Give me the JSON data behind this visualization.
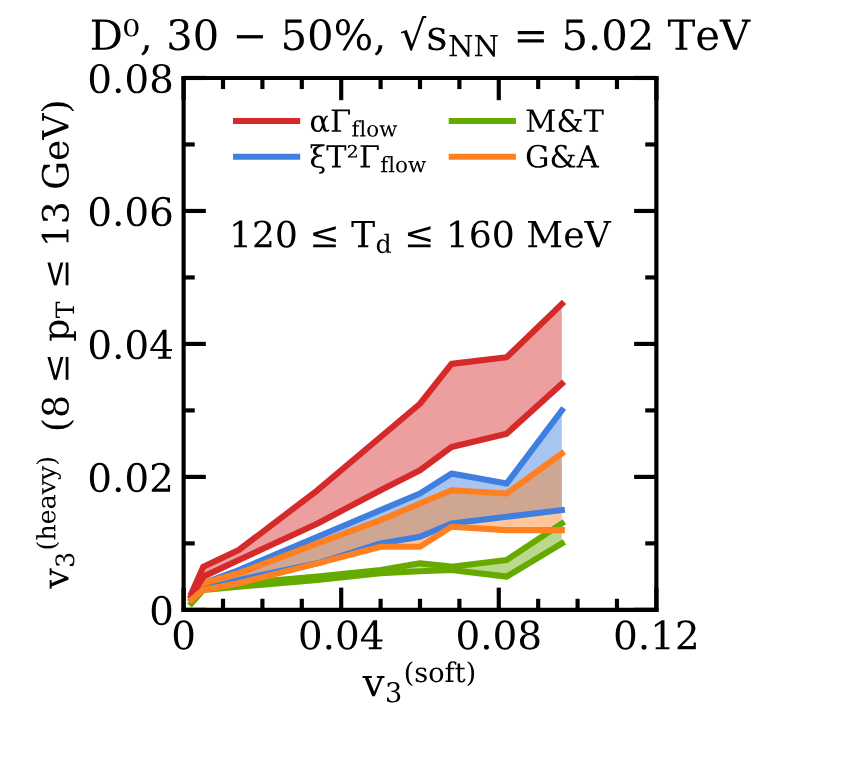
{
  "chart_data": {
    "type": "line",
    "title": "D⁰, 30 − 50%, √s$_{NN}$ = 5.02 TeV",
    "xlabel": "v$_{3}$$^{(soft)}$",
    "ylabel": "v$_{3}$$^{(heavy)}$  (8 ≤ p$_{T}$ ≤ 13 GeV)",
    "annotations": [
      "120 ≤ T$_{d}$ ≤ 160 MeV"
    ],
    "x": [
      0.002,
      0.005,
      0.014,
      0.034,
      0.05,
      0.06,
      0.068,
      0.082,
      0.096
    ],
    "series": [
      {
        "name": "αΓ$_{flow}$",
        "color": "#d62a2a",
        "values": [
          0.0025,
          0.0065,
          0.009,
          0.018,
          0.026,
          0.031,
          0.037,
          0.038,
          0.046
        ],
        "upper": [
          0.0025,
          0.0065,
          0.009,
          0.018,
          0.026,
          0.031,
          0.037,
          0.038,
          0.046
        ],
        "lower": [
          0.002,
          0.005,
          0.0075,
          0.013,
          0.018,
          0.021,
          0.0245,
          0.0265,
          0.034
        ]
      },
      {
        "name": "ξT²Γ$_{flow}$",
        "color": "#3f7fe0",
        "values": [
          0.002,
          0.004,
          0.006,
          0.011,
          0.015,
          0.0175,
          0.0205,
          0.019,
          0.03
        ],
        "upper": [
          0.002,
          0.004,
          0.006,
          0.011,
          0.015,
          0.0175,
          0.0205,
          0.019,
          0.03
        ],
        "lower": [
          0.0015,
          0.003,
          0.0045,
          0.007,
          0.01,
          0.011,
          0.013,
          0.014,
          0.015
        ]
      },
      {
        "name": "M&T",
        "color": "#66aa00",
        "values": [
          0.0015,
          0.0035,
          0.004,
          0.005,
          0.006,
          0.007,
          0.0065,
          0.0075,
          0.013
        ],
        "upper": [
          0.0015,
          0.0035,
          0.004,
          0.005,
          0.006,
          0.007,
          0.0065,
          0.0075,
          0.013
        ],
        "lower": [
          0.001,
          0.003,
          0.0035,
          0.0045,
          0.0055,
          0.0058,
          0.006,
          0.005,
          0.01
        ]
      },
      {
        "name": "G&A",
        "color": "#ff8020",
        "values": [
          0.002,
          0.004,
          0.0055,
          0.01,
          0.0135,
          0.016,
          0.018,
          0.0175,
          0.0235
        ],
        "upper": [
          0.002,
          0.004,
          0.0055,
          0.01,
          0.0135,
          0.016,
          0.018,
          0.0175,
          0.0235
        ],
        "lower": [
          0.0015,
          0.003,
          0.004,
          0.007,
          0.0095,
          0.0095,
          0.0125,
          0.012,
          0.012
        ]
      },
      {
        "color": "#d62a2a",
        "values": [
          0.002,
          0.005,
          0.0075,
          0.013,
          0.018,
          0.021,
          0.0245,
          0.0265,
          0.034
        ]
      },
      {
        "color": "#3f7fe0",
        "values": [
          0.0015,
          0.003,
          0.0045,
          0.007,
          0.01,
          0.011,
          0.013,
          0.014,
          0.015
        ]
      },
      {
        "color": "#66aa00",
        "values": [
          0.001,
          0.003,
          0.0035,
          0.0045,
          0.0055,
          0.0058,
          0.006,
          0.005,
          0.01
        ]
      },
      {
        "color": "#ff8020",
        "values": [
          0.0015,
          0.003,
          0.004,
          0.007,
          0.0095,
          0.0095,
          0.0125,
          0.012,
          0.012
        ]
      }
    ],
    "xlim": [
      0,
      0.12
    ],
    "ylim": [
      0,
      0.08
    ],
    "xticks": [
      0,
      0.04,
      0.08,
      0.12
    ],
    "yticks": [
      0,
      0.02,
      0.04,
      0.06,
      0.08
    ],
    "legend": "top",
    "grid": false
  }
}
